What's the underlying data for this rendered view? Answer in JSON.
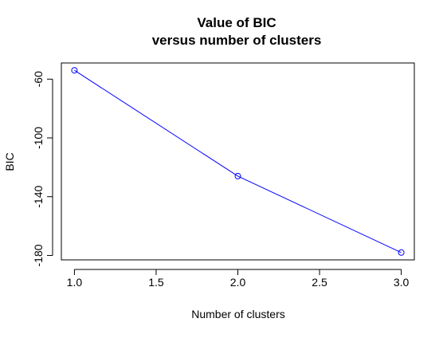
{
  "chart_data": {
    "type": "line",
    "title": "Value of BIC",
    "subtitle": "versus number of clusters",
    "xlabel": "Number of clusters",
    "ylabel": "BIC",
    "x": [
      1,
      2,
      3
    ],
    "series": [
      {
        "values": [
          -54,
          -126,
          -178
        ],
        "color": "#0000ff",
        "marker": "open-circle"
      }
    ],
    "xlim": [
      0.92,
      3.08
    ],
    "ylim": [
      -183,
      -49
    ],
    "x_ticks": [
      1.0,
      1.5,
      2.0,
      2.5,
      3.0
    ],
    "x_tick_labels": [
      "1.0",
      "1.5",
      "2.0",
      "2.5",
      "3.0"
    ],
    "y_ticks": [
      -60,
      -100,
      -140,
      -180
    ],
    "y_tick_labels": [
      "-60",
      "-100",
      "-140",
      "-180"
    ],
    "grid": false,
    "legend": "none"
  }
}
